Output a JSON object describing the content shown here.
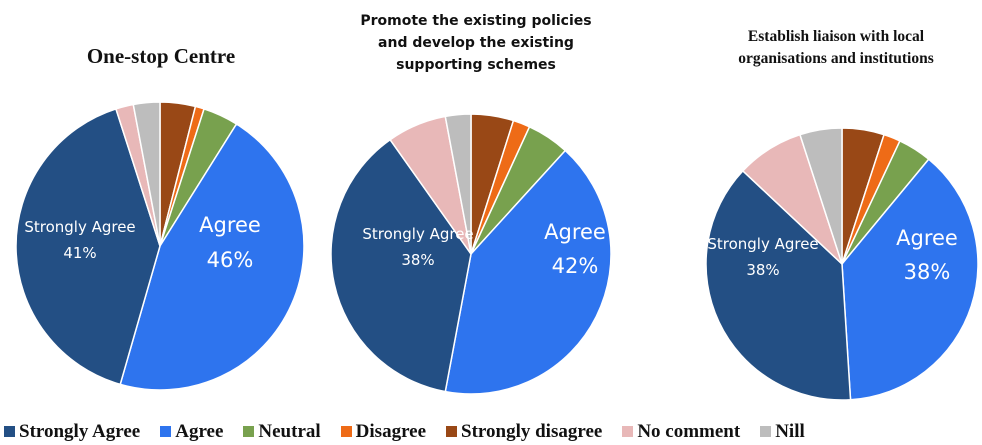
{
  "chart_data": [
    {
      "type": "pie",
      "title": "One-stop Centre",
      "slices": [
        {
          "label": "Strongly disagree",
          "value": 4,
          "color": "#994816"
        },
        {
          "label": "Disagree",
          "value": 1,
          "color": "#ee6b17"
        },
        {
          "label": "Neutral",
          "value": 4,
          "color": "#78a14e"
        },
        {
          "label": "Agree",
          "value": 46,
          "color": "#2e74ee",
          "data_label": {
            "name": "Agree",
            "value": "46%"
          }
        },
        {
          "label": "Strongly Agree",
          "value": 41,
          "color": "#234f84",
          "data_label": {
            "name": "Strongly Agree",
            "value": "41%"
          }
        },
        {
          "label": "No comment",
          "value": 2,
          "color": "#e8b8b8"
        },
        {
          "label": "Nill",
          "value": 3,
          "color": "#bdbdbd"
        }
      ]
    },
    {
      "type": "pie",
      "title": "Promote the existing policies and develop the existing supporting schemes",
      "title_lines": [
        "Promote the existing policies",
        "and develop the existing",
        "supporting schemes"
      ],
      "slices": [
        {
          "label": "Strongly disagree",
          "value": 5,
          "color": "#994816"
        },
        {
          "label": "Disagree",
          "value": 2,
          "color": "#ee6b17"
        },
        {
          "label": "Neutral",
          "value": 5,
          "color": "#78a14e"
        },
        {
          "label": "Agree",
          "value": 42,
          "color": "#2e74ee",
          "data_label": {
            "name": "Agree",
            "value": "42%"
          }
        },
        {
          "label": "Strongly Agree",
          "value": 38,
          "color": "#234f84",
          "data_label": {
            "name": "Strongly Agree",
            "value": "38%"
          }
        },
        {
          "label": "No comment",
          "value": 7,
          "color": "#e8b8b8"
        },
        {
          "label": "Nill",
          "value": 3,
          "color": "#bdbdbd"
        }
      ]
    },
    {
      "type": "pie",
      "title": "Establish liaison with local organisations and institutions",
      "title_lines": [
        "Establish liaison with local",
        "organisations and institutions"
      ],
      "slices": [
        {
          "label": "Strongly disagree",
          "value": 5,
          "color": "#994816"
        },
        {
          "label": "Disagree",
          "value": 2,
          "color": "#ee6b17"
        },
        {
          "label": "Neutral",
          "value": 4,
          "color": "#78a14e"
        },
        {
          "label": "Agree",
          "value": 38,
          "color": "#2e74ee",
          "data_label": {
            "name": "Agree",
            "value": "38%"
          }
        },
        {
          "label": "Strongly Agree",
          "value": 38,
          "color": "#234f84",
          "data_label": {
            "name": "Strongly Agree",
            "value": "38%"
          }
        },
        {
          "label": "No comment",
          "value": 8,
          "color": "#e8b8b8"
        },
        {
          "label": "Nill",
          "value": 5,
          "color": "#bdbdbd"
        }
      ]
    }
  ],
  "legend": {
    "placement": "bottom",
    "items": [
      {
        "label": "Strongly Agree",
        "color": "#234f84"
      },
      {
        "label": "Agree",
        "color": "#2e74ee"
      },
      {
        "label": "Neutral",
        "color": "#78a14e"
      },
      {
        "label": "Disagree",
        "color": "#ee6b17"
      },
      {
        "label": "Strongly disagree",
        "color": "#994816"
      },
      {
        "label": "No comment",
        "color": "#e8b8b8"
      },
      {
        "label": "Nill",
        "color": "#bdbdbd"
      }
    ]
  }
}
